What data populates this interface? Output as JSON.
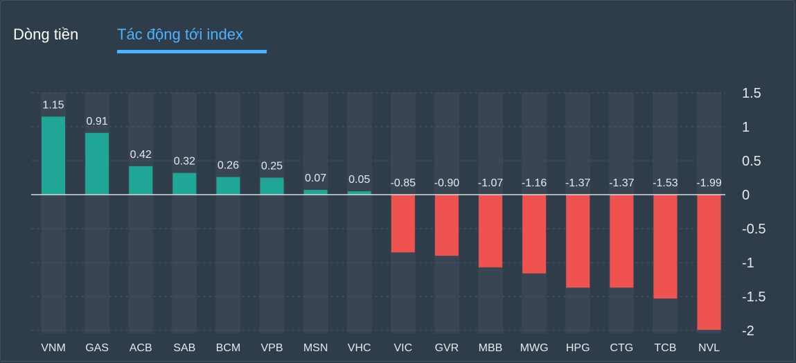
{
  "tabs": [
    {
      "label": "Dòng tiền",
      "active": false
    },
    {
      "label": "Tác động tới index",
      "active": true
    }
  ],
  "colors": {
    "positive": "#20a696",
    "negative": "#ef5350",
    "accent": "#4bb3ff",
    "background": "#2f3c4a",
    "column_bg": "#394552",
    "text": "#e6e9ee"
  },
  "chart_data": {
    "type": "bar",
    "title": "",
    "xlabel": "",
    "ylabel": "",
    "categories": [
      "VNM",
      "GAS",
      "ACB",
      "SAB",
      "BCM",
      "VPB",
      "MSN",
      "VHC",
      "VIC",
      "GVR",
      "MBB",
      "MWG",
      "HPG",
      "CTG",
      "TCB",
      "NVL"
    ],
    "values": [
      1.15,
      0.91,
      0.42,
      0.32,
      0.26,
      0.25,
      0.07,
      0.05,
      -0.85,
      -0.9,
      -1.07,
      -1.16,
      -1.37,
      -1.37,
      -1.53,
      -1.99
    ],
    "value_labels": [
      "1.15",
      "0.91",
      "0.42",
      "0.32",
      "0.26",
      "0.25",
      "0.07",
      "0.05",
      "-0.85",
      "-0.90",
      "-1.07",
      "-1.16",
      "-1.37",
      "-1.37",
      "-1.53",
      "-1.99"
    ],
    "yticks": [
      1.5,
      1,
      0.5,
      0,
      -0.5,
      -1,
      -1.5,
      -2
    ],
    "ytick_labels": [
      "1.5",
      "1",
      "0.5",
      "0",
      "-0.5",
      "-1",
      "-1.5",
      "-2"
    ],
    "ylim": [
      -2,
      1.5
    ],
    "y_axis_side": "right",
    "grid": true
  }
}
